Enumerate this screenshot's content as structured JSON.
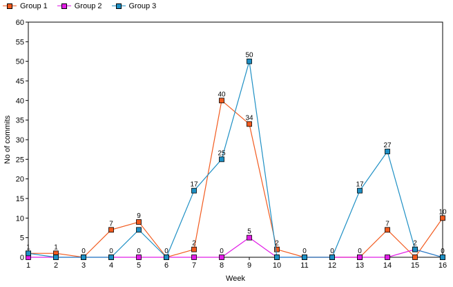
{
  "legend": [
    {
      "label": "Group 1",
      "color": "#f25a1e"
    },
    {
      "label": "Group 2",
      "color": "#e11ce6"
    },
    {
      "label": "Group 3",
      "color": "#1d8fc4"
    }
  ],
  "chart_data": {
    "type": "line",
    "title": "",
    "xlabel": "Week",
    "ylabel": "No of commits",
    "x": [
      1,
      2,
      3,
      4,
      5,
      6,
      7,
      8,
      9,
      10,
      11,
      12,
      13,
      14,
      15,
      16
    ],
    "ylim": [
      0,
      60
    ],
    "yticks": [
      0,
      5,
      10,
      15,
      20,
      25,
      30,
      35,
      40,
      45,
      50,
      55,
      60
    ],
    "grid": false,
    "legend_position": "top-left",
    "series": [
      {
        "name": "Group 1",
        "color": "#f25a1e",
        "values": [
          1,
          1,
          0,
          7,
          9,
          0,
          2,
          40,
          34,
          2,
          0,
          0,
          0,
          7,
          0,
          10
        ]
      },
      {
        "name": "Group 2",
        "color": "#e11ce6",
        "values": [
          0,
          0,
          0,
          0,
          0,
          0,
          0,
          0,
          5,
          0,
          0,
          0,
          0,
          0,
          2,
          0
        ]
      },
      {
        "name": "Group 3",
        "color": "#1d8fc4",
        "values": [
          1,
          0,
          0,
          0,
          7,
          0,
          17,
          25,
          50,
          0,
          0,
          0,
          17,
          27,
          2,
          0
        ]
      }
    ],
    "data_labels": [
      {
        "series": 2,
        "index": 0,
        "text": "1"
      },
      {
        "series": 0,
        "index": 1,
        "text": "1"
      },
      {
        "series": 0,
        "index": 2,
        "text": "0"
      },
      {
        "series": 2,
        "index": 3,
        "text": "0"
      },
      {
        "series": 0,
        "index": 3,
        "text": "7"
      },
      {
        "series": 1,
        "index": 4,
        "text": "0"
      },
      {
        "series": 0,
        "index": 4,
        "text": "9"
      },
      {
        "series": 0,
        "index": 5,
        "text": "0"
      },
      {
        "series": 0,
        "index": 6,
        "text": "2"
      },
      {
        "series": 2,
        "index": 6,
        "text": "17"
      },
      {
        "series": 1,
        "index": 7,
        "text": "0"
      },
      {
        "series": 2,
        "index": 7,
        "text": "25"
      },
      {
        "series": 0,
        "index": 7,
        "text": "40"
      },
      {
        "series": 1,
        "index": 8,
        "text": "5"
      },
      {
        "series": 0,
        "index": 8,
        "text": "34"
      },
      {
        "series": 2,
        "index": 8,
        "text": "50"
      },
      {
        "series": 0,
        "index": 9,
        "text": "2"
      },
      {
        "series": 0,
        "index": 10,
        "text": "0"
      },
      {
        "series": 0,
        "index": 11,
        "text": "0"
      },
      {
        "series": 0,
        "index": 12,
        "text": "0"
      },
      {
        "series": 2,
        "index": 12,
        "text": "17"
      },
      {
        "series": 0,
        "index": 13,
        "text": "7"
      },
      {
        "series": 2,
        "index": 13,
        "text": "27"
      },
      {
        "series": 1,
        "index": 14,
        "text": "2"
      },
      {
        "series": 1,
        "index": 15,
        "text": "0"
      },
      {
        "series": 0,
        "index": 15,
        "text": "10"
      }
    ]
  }
}
